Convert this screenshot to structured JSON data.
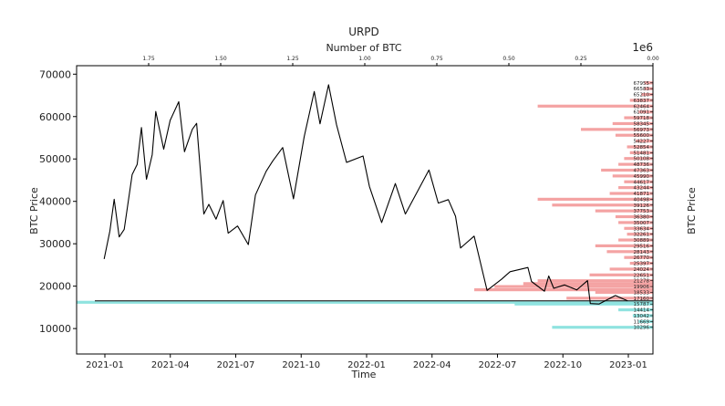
{
  "chart_data": {
    "type": "line",
    "title": "URPD",
    "xlabel": "Time",
    "ylabel": "BTC Price",
    "ylabel_right": "BTC Price",
    "x2label": "Number of BTC",
    "x2_multiplier": "1e6",
    "ylim": [
      4000,
      72000
    ],
    "x_ticks": [
      "2021-01",
      "2021-04",
      "2021-07",
      "2021-10",
      "2022-01",
      "2022-04",
      "2022-07",
      "2022-10",
      "2023-01"
    ],
    "x2_ticks": [
      "1.75",
      "1.50",
      "1.25",
      "1.00",
      "0.75",
      "0.50",
      "0.25",
      "0.00"
    ],
    "x2lim": [
      0,
      2.0
    ],
    "y_ticks": [
      10000,
      20000,
      30000,
      40000,
      50000,
      60000,
      70000
    ],
    "current_price": 16550,
    "series": [
      {
        "values": [
          [
            "2020-12-31",
            26400
          ],
          [
            "2021-01-08",
            33000
          ],
          [
            "2021-01-14",
            40500
          ],
          [
            "2021-01-21",
            31600
          ],
          [
            "2021-01-28",
            33400
          ],
          [
            "2021-02-08",
            46300
          ],
          [
            "2021-02-15",
            48700
          ],
          [
            "2021-02-21",
            57400
          ],
          [
            "2021-02-28",
            45200
          ],
          [
            "2021-03-08",
            51000
          ],
          [
            "2021-03-13",
            61200
          ],
          [
            "2021-03-24",
            52300
          ],
          [
            "2021-04-02",
            59100
          ],
          [
            "2021-04-14",
            63500
          ],
          [
            "2021-04-22",
            51700
          ],
          [
            "2021-05-03",
            57000
          ],
          [
            "2021-05-09",
            58400
          ],
          [
            "2021-05-19",
            37000
          ],
          [
            "2021-05-26",
            39300
          ],
          [
            "2021-06-05",
            35800
          ],
          [
            "2021-06-15",
            40200
          ],
          [
            "2021-06-22",
            32500
          ],
          [
            "2021-07-05",
            34200
          ],
          [
            "2021-07-20",
            29800
          ],
          [
            "2021-07-30",
            41500
          ],
          [
            "2021-08-14",
            47100
          ],
          [
            "2021-08-23",
            49500
          ],
          [
            "2021-09-06",
            52700
          ],
          [
            "2021-09-21",
            40600
          ],
          [
            "2021-10-06",
            55300
          ],
          [
            "2021-10-20",
            65900
          ],
          [
            "2021-10-28",
            58300
          ],
          [
            "2021-11-09",
            67500
          ],
          [
            "2021-11-20",
            58100
          ],
          [
            "2021-12-04",
            49200
          ],
          [
            "2021-12-27",
            50700
          ],
          [
            "2022-01-05",
            43500
          ],
          [
            "2022-01-22",
            35000
          ],
          [
            "2022-02-10",
            44200
          ],
          [
            "2022-02-24",
            37000
          ],
          [
            "2022-03-29",
            47400
          ],
          [
            "2022-04-11",
            39600
          ],
          [
            "2022-04-25",
            40400
          ],
          [
            "2022-05-05",
            36500
          ],
          [
            "2022-05-12",
            29000
          ],
          [
            "2022-05-31",
            31800
          ],
          [
            "2022-06-13",
            22500
          ],
          [
            "2022-06-18",
            19000
          ],
          [
            "2022-07-08",
            21600
          ],
          [
            "2022-07-20",
            23400
          ],
          [
            "2022-08-14",
            24400
          ],
          [
            "2022-08-19",
            21100
          ],
          [
            "2022-09-06",
            18800
          ],
          [
            "2022-09-12",
            22400
          ],
          [
            "2022-09-19",
            19500
          ],
          [
            "2022-10-04",
            20300
          ],
          [
            "2022-10-21",
            19100
          ],
          [
            "2022-11-05",
            21300
          ],
          [
            "2022-11-09",
            15900
          ],
          [
            "2022-11-21",
            15800
          ],
          [
            "2022-12-14",
            17800
          ],
          [
            "2022-12-31",
            16550
          ]
        ]
      }
    ],
    "urpd_labels": [
      10296,
      11669,
      13042,
      14414,
      15787,
      17160,
      18533,
      19906,
      21278,
      22651,
      24024,
      25397,
      26770,
      28143,
      29516,
      30889,
      32261,
      33634,
      35007,
      36380,
      37753,
      39126,
      40498,
      41871,
      43244,
      44617,
      45990,
      47363,
      48736,
      50108,
      51481,
      52854,
      54227,
      55600,
      56973,
      58345,
      59718,
      61091,
      62464,
      63837,
      65210,
      66583,
      67955
    ],
    "urpd_bars": [
      {
        "price": 10296,
        "btc": 0.35,
        "color": "#8fe3e0"
      },
      {
        "price": 11669,
        "btc": 0.05,
        "color": "#8fe3e0"
      },
      {
        "price": 13042,
        "btc": 0.07,
        "color": "#8fe3e0"
      },
      {
        "price": 14414,
        "btc": 0.12,
        "color": "#8fe3e0"
      },
      {
        "price": 15787,
        "btc": 0.48,
        "color": "#8fe3e0"
      },
      {
        "price": 16200,
        "btc": 2.02,
        "color": "#8fe3e0"
      },
      {
        "price": 17160,
        "btc": 0.3,
        "color": "#f4a3a3"
      },
      {
        "price": 18533,
        "btc": 0.2,
        "color": "#f4a3a3"
      },
      {
        "price": 19150,
        "btc": 0.62,
        "color": "#f4a3a3"
      },
      {
        "price": 19906,
        "btc": 0.55,
        "color": "#f4a3a3"
      },
      {
        "price": 20600,
        "btc": 0.45,
        "color": "#f4a3a3"
      },
      {
        "price": 21278,
        "btc": 0.4,
        "color": "#f4a3a3"
      },
      {
        "price": 22651,
        "btc": 0.22,
        "color": "#f4a3a3"
      },
      {
        "price": 24024,
        "btc": 0.15,
        "color": "#f4a3a3"
      },
      {
        "price": 25397,
        "btc": 0.08,
        "color": "#f4a3a3"
      },
      {
        "price": 26770,
        "btc": 0.1,
        "color": "#f4a3a3"
      },
      {
        "price": 28143,
        "btc": 0.16,
        "color": "#f4a3a3"
      },
      {
        "price": 29516,
        "btc": 0.2,
        "color": "#f4a3a3"
      },
      {
        "price": 30889,
        "btc": 0.12,
        "color": "#f4a3a3"
      },
      {
        "price": 32261,
        "btc": 0.09,
        "color": "#f4a3a3"
      },
      {
        "price": 33634,
        "btc": 0.1,
        "color": "#f4a3a3"
      },
      {
        "price": 35007,
        "btc": 0.12,
        "color": "#f4a3a3"
      },
      {
        "price": 36380,
        "btc": 0.13,
        "color": "#f4a3a3"
      },
      {
        "price": 37753,
        "btc": 0.2,
        "color": "#f4a3a3"
      },
      {
        "price": 39126,
        "btc": 0.35,
        "color": "#f4a3a3"
      },
      {
        "price": 40498,
        "btc": 0.4,
        "color": "#f4a3a3"
      },
      {
        "price": 41871,
        "btc": 0.15,
        "color": "#f4a3a3"
      },
      {
        "price": 43244,
        "btc": 0.12,
        "color": "#f4a3a3"
      },
      {
        "price": 44617,
        "btc": 0.1,
        "color": "#f4a3a3"
      },
      {
        "price": 45990,
        "btc": 0.14,
        "color": "#f4a3a3"
      },
      {
        "price": 47363,
        "btc": 0.18,
        "color": "#f4a3a3"
      },
      {
        "price": 48736,
        "btc": 0.12,
        "color": "#f4a3a3"
      },
      {
        "price": 50108,
        "btc": 0.1,
        "color": "#f4a3a3"
      },
      {
        "price": 51481,
        "btc": 0.08,
        "color": "#f4a3a3"
      },
      {
        "price": 52854,
        "btc": 0.09,
        "color": "#f4a3a3"
      },
      {
        "price": 54227,
        "btc": 0.06,
        "color": "#f4a3a3"
      },
      {
        "price": 55600,
        "btc": 0.13,
        "color": "#f4a3a3"
      },
      {
        "price": 56973,
        "btc": 0.25,
        "color": "#f4a3a3"
      },
      {
        "price": 58345,
        "btc": 0.14,
        "color": "#f4a3a3"
      },
      {
        "price": 59718,
        "btc": 0.1,
        "color": "#f4a3a3"
      },
      {
        "price": 61091,
        "btc": 0.05,
        "color": "#f4a3a3"
      },
      {
        "price": 62464,
        "btc": 0.4,
        "color": "#f4a3a3"
      },
      {
        "price": 63837,
        "btc": 0.08,
        "color": "#f4a3a3"
      },
      {
        "price": 65210,
        "btc": 0.04,
        "color": "#f4a3a3"
      },
      {
        "price": 66583,
        "btc": 0.03,
        "color": "#f4a3a3"
      },
      {
        "price": 67955,
        "btc": 0.03,
        "color": "#f4a3a3"
      }
    ],
    "colors": {
      "line": "#000000",
      "above": "#f4a3a3",
      "below": "#8fe3e0",
      "current": "#444444"
    }
  }
}
